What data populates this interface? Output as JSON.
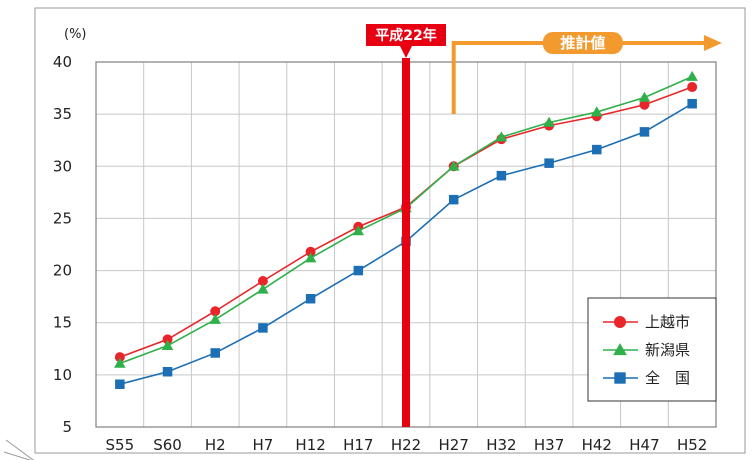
{
  "chart_data": {
    "type": "line",
    "unit": "(%)",
    "categories": [
      "S55",
      "S60",
      "H2",
      "H7",
      "H12",
      "H17",
      "H22",
      "H27",
      "H32",
      "H37",
      "H42",
      "H47",
      "H52"
    ],
    "ylim": [
      5,
      40
    ],
    "yticks": [
      5,
      10,
      15,
      20,
      25,
      30,
      35,
      40
    ],
    "grid": true,
    "legend_position": "bottom-right",
    "series": [
      {
        "name": "上越市",
        "marker": "circle",
        "color": "#e8262a",
        "values": [
          11.7,
          13.4,
          16.1,
          19.0,
          21.8,
          24.2,
          26.1,
          30.0,
          32.6,
          33.9,
          34.8,
          35.9,
          37.6
        ]
      },
      {
        "name": "新潟県",
        "marker": "triangle",
        "color": "#2fb04a",
        "values": [
          11.1,
          12.8,
          15.3,
          18.2,
          21.2,
          23.8,
          26.0,
          30.0,
          32.8,
          34.2,
          35.2,
          36.6,
          38.6
        ]
      },
      {
        "name": "全　国",
        "marker": "square",
        "color": "#1c6fb4",
        "values": [
          9.1,
          10.3,
          12.1,
          14.5,
          17.3,
          20.0,
          22.8,
          26.8,
          29.1,
          30.3,
          31.6,
          33.3,
          36.0
        ]
      }
    ],
    "annotations": {
      "marker_line": {
        "category": "H22",
        "label": "平成22年",
        "color": "#e60012"
      },
      "projection": {
        "from_category": "H27",
        "label": "推計値",
        "color": "#f39a2e"
      }
    }
  }
}
